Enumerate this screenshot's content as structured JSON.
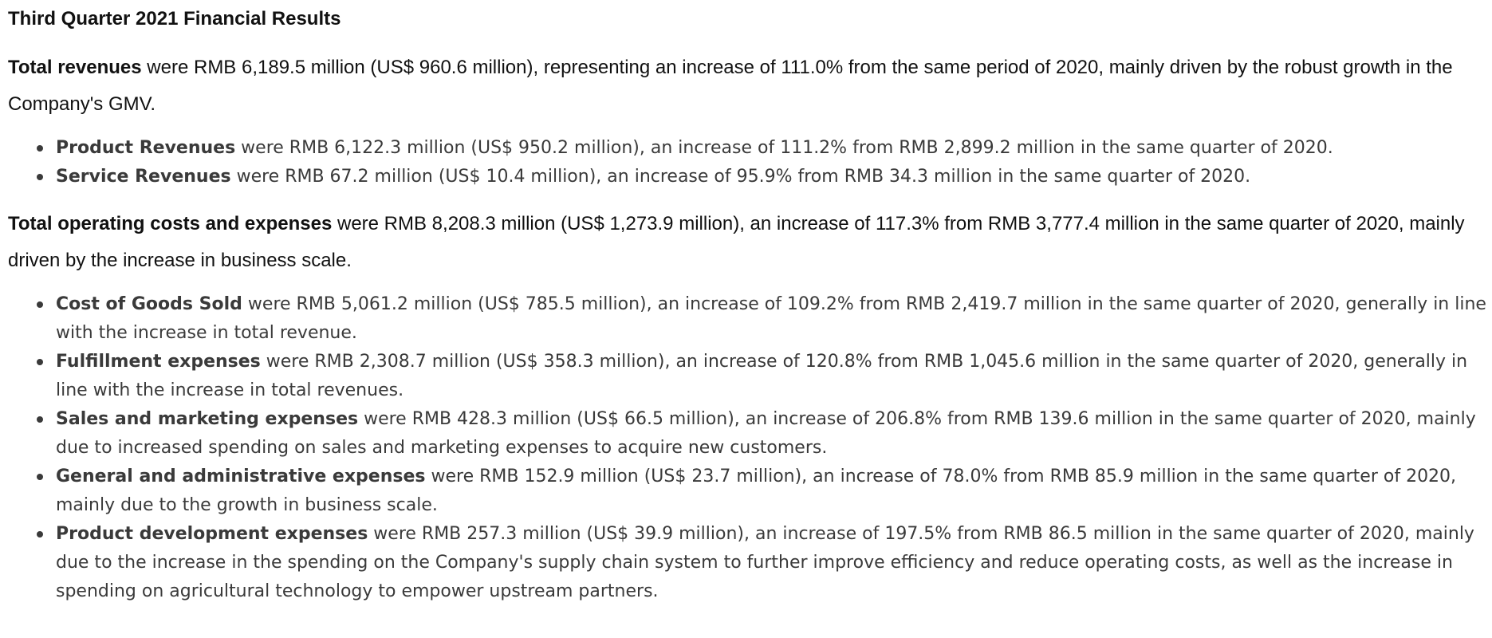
{
  "heading": "Third Quarter 2021 Financial Results",
  "revenues": {
    "label": "Total revenues",
    "text": " were RMB 6,189.5 million (US$ 960.6 million), representing an increase of 111.0% from the same period of 2020, mainly driven by the robust growth in the Company's GMV.",
    "items": [
      {
        "label": "Product Revenues",
        "text": " were RMB 6,122.3 million (US$ 950.2 million), an increase of 111.2% from RMB 2,899.2 million in the same quarter of 2020."
      },
      {
        "label": "Service Revenues",
        "text": " were RMB 67.2 million (US$ 10.4 million), an increase of 95.9% from RMB 34.3 million in the same quarter of 2020."
      }
    ]
  },
  "costs": {
    "label": "Total operating costs and expenses",
    "text": " were RMB 8,208.3 million (US$ 1,273.9 million), an increase of 117.3% from RMB 3,777.4 million in the same quarter of 2020, mainly driven by the increase in business scale.",
    "items": [
      {
        "label": "Cost of Goods Sold",
        "text": " were RMB 5,061.2 million (US$ 785.5 million), an increase of 109.2% from RMB 2,419.7 million in the same quarter of 2020, generally in line with the increase in total revenue."
      },
      {
        "label": "Fulfillment expenses",
        "text": " were RMB 2,308.7 million (US$ 358.3 million), an increase of 120.8% from RMB 1,045.6 million in the same quarter of 2020, generally in line with the increase in total revenues."
      },
      {
        "label": "Sales and marketing expenses",
        "text": " were RMB 428.3 million (US$ 66.5 million), an increase of 206.8% from RMB 139.6 million in the same quarter of 2020, mainly due to increased spending on sales and marketing expenses to acquire new customers."
      },
      {
        "label": "General and administrative expenses",
        "text": " were RMB 152.9 million (US$ 23.7 million), an increase of 78.0% from RMB 85.9 million in the same quarter of 2020, mainly due to the growth in business scale."
      },
      {
        "label": "Product development expenses",
        "text": " were RMB 257.3 million (US$ 39.9 million), an increase of 197.5% from RMB 86.5 million in the same quarter of 2020, mainly due to the increase in the spending on the Company's supply chain system to further improve efficiency and reduce operating costs, as well as the increase in spending on agricultural technology to empower upstream partners."
      }
    ]
  }
}
